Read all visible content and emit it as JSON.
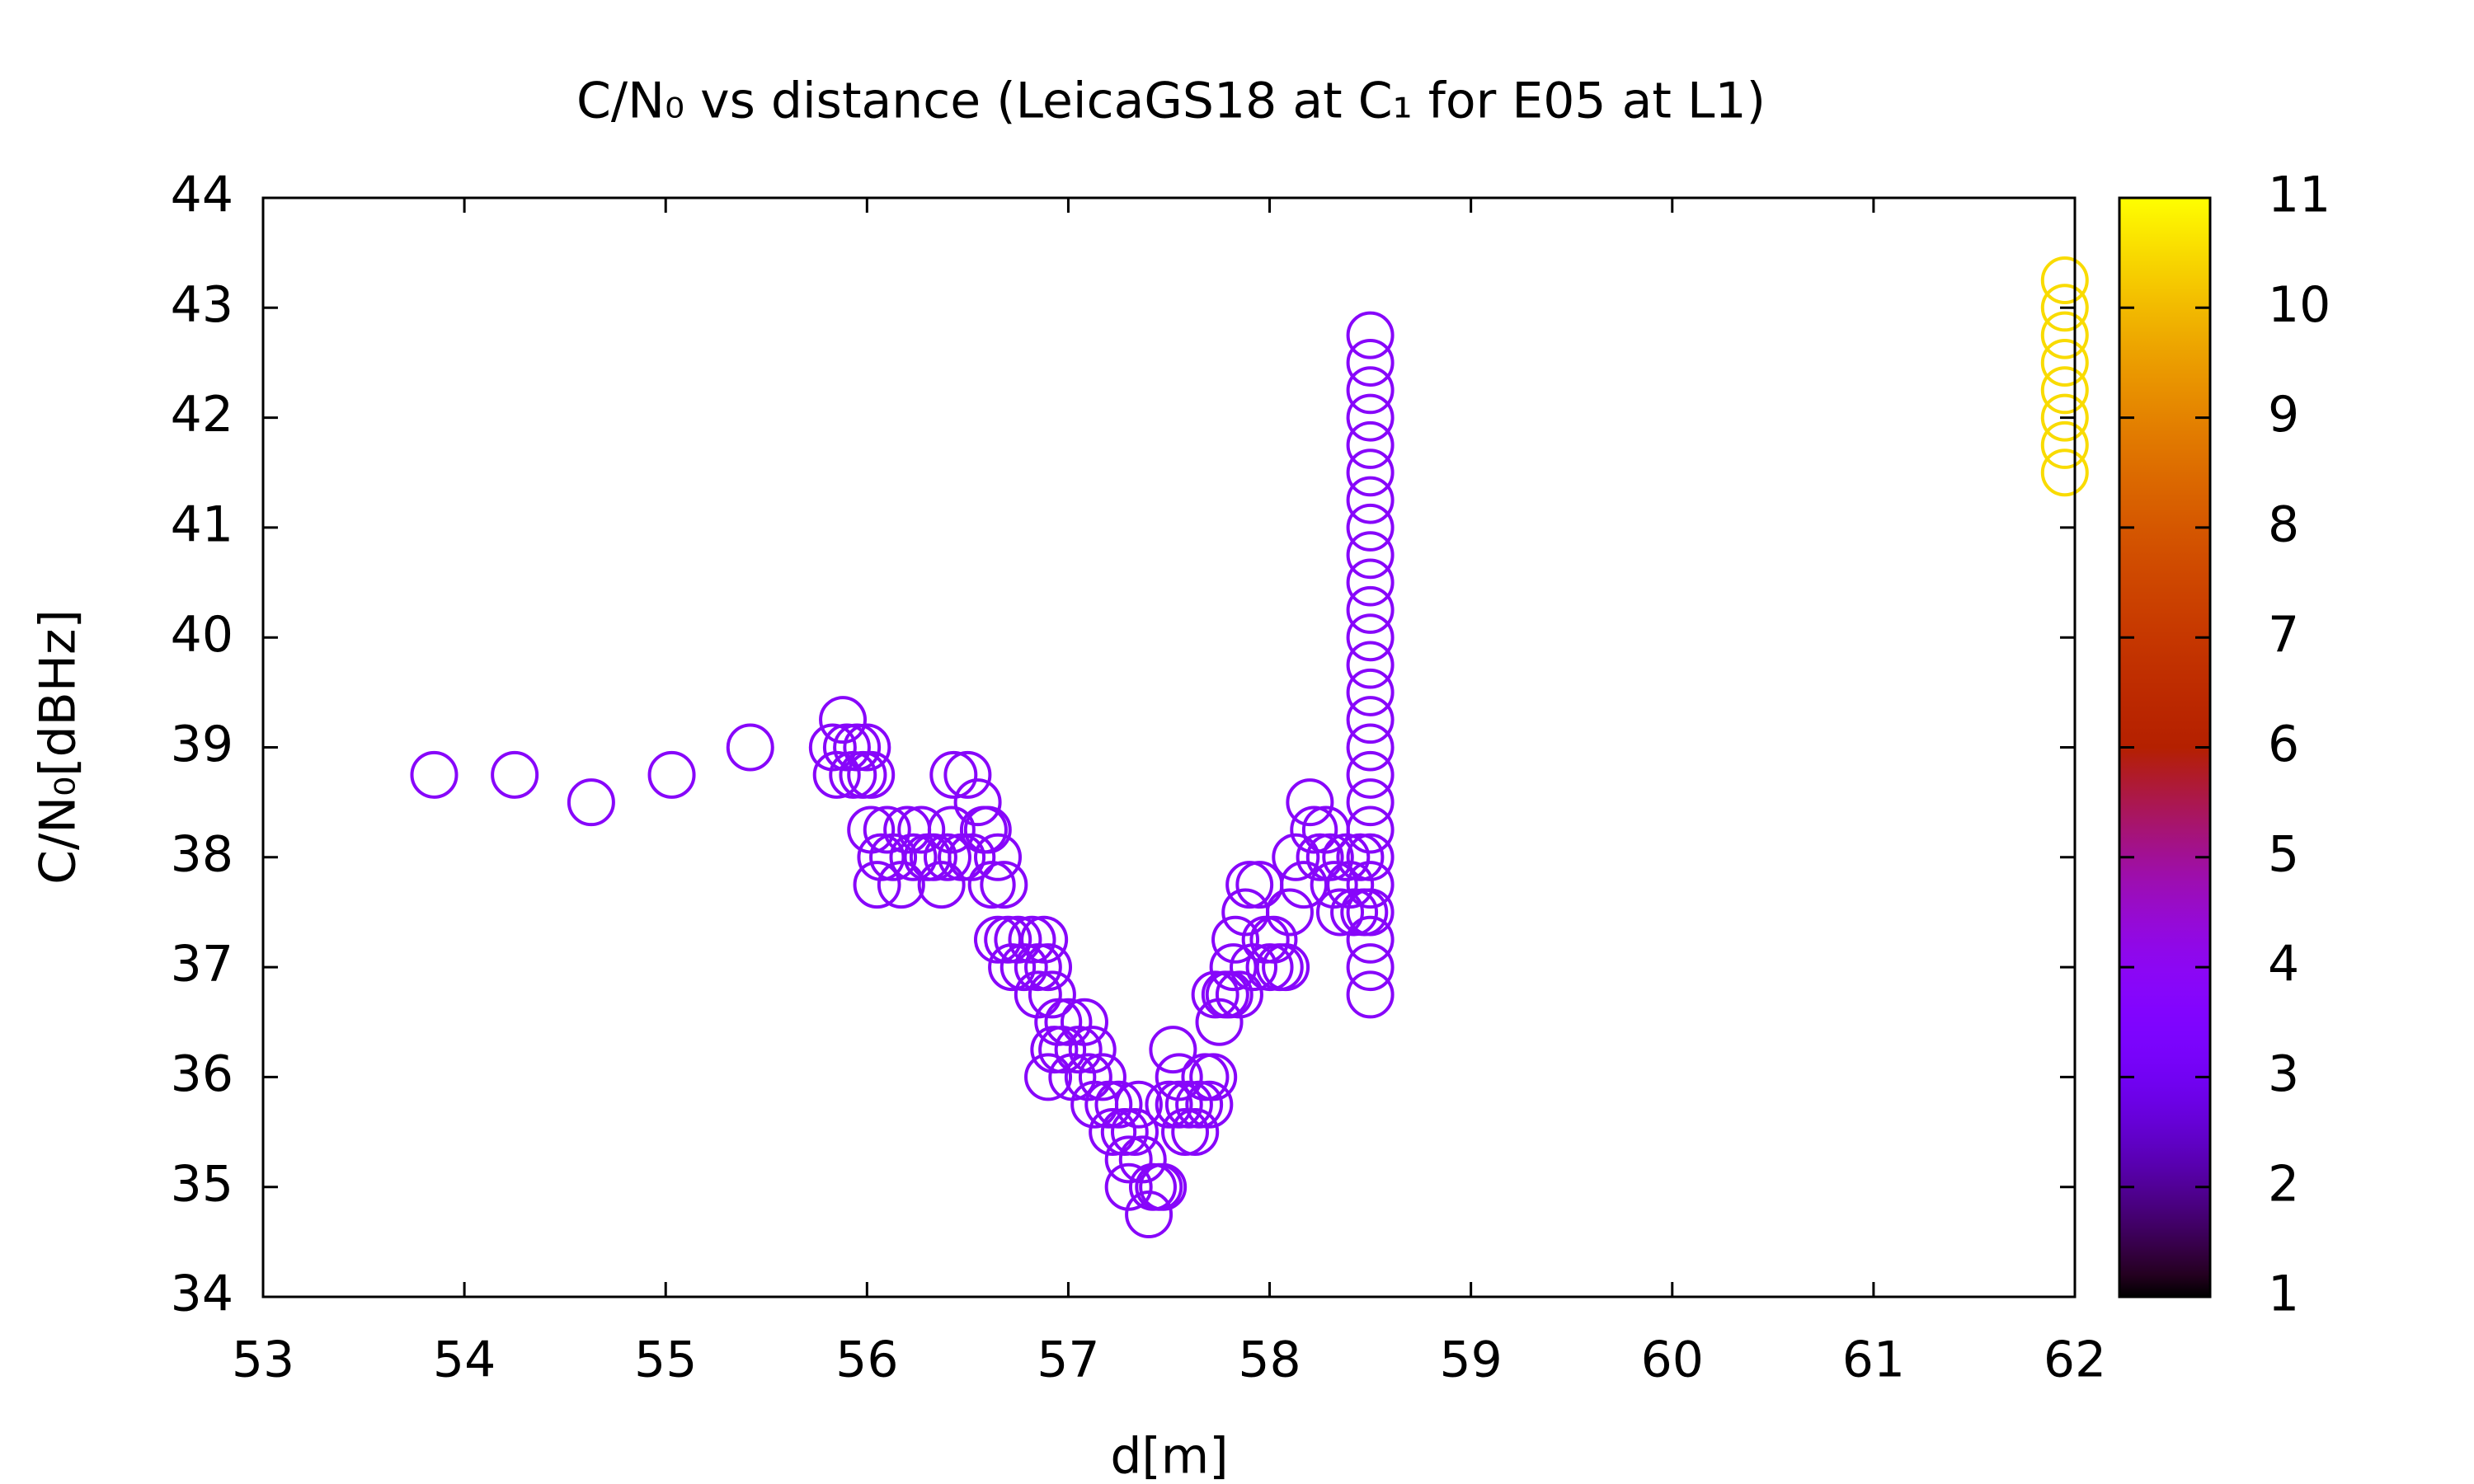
{
  "chart_data": {
    "type": "scatter",
    "title": "C/N₀ vs distance (LeicaGS18 at C₁ for E05 at L1)",
    "x_label": "d[m]",
    "y_label": "C/N₀[dBHz]",
    "xlim": [
      53,
      62
    ],
    "xticks": [
      53,
      54,
      55,
      56,
      57,
      58,
      59,
      60,
      61,
      62
    ],
    "ylim": [
      34,
      44
    ],
    "yticks": [
      34,
      35,
      36,
      37,
      38,
      39,
      40,
      41,
      42,
      43,
      44
    ],
    "clim": [
      1,
      11
    ],
    "cticks": [
      1,
      2,
      3,
      4,
      5,
      6,
      7,
      8,
      9,
      10,
      11
    ],
    "colormap": "gnuplot",
    "series": [
      {
        "z": 3.8,
        "x": [
          53.85,
          54.25,
          54.63,
          55.03,
          55.42,
          55.83,
          55.85,
          55.88,
          55.9,
          55.93,
          55.95,
          55.98,
          56.0,
          56.02,
          56.02,
          56.05,
          56.07,
          56.1,
          56.13,
          56.17,
          56.2,
          56.23,
          56.27,
          56.3,
          56.33,
          56.37,
          56.4,
          56.42,
          56.43,
          56.47,
          56.5,
          56.52,
          56.55,
          56.58,
          56.6,
          56.62,
          56.65,
          56.68,
          56.65,
          56.7,
          56.72,
          56.75,
          56.78,
          56.82,
          56.85,
          56.88,
          56.9,
          56.92,
          56.85,
          56.95,
          56.9,
          56.93,
          56.97,
          57.0,
          57.02,
          57.05,
          57.08,
          57.1,
          57.12,
          57.13,
          57.17,
          57.2,
          57.22,
          57.25,
          57.28,
          57.3,
          57.3,
          57.33,
          57.35,
          57.37,
          57.4,
          57.42,
          57.45,
          57.47,
          57.5,
          57.52,
          57.55,
          57.55,
          57.58,
          57.6,
          57.63,
          57.65,
          57.68,
          57.7,
          57.72,
          57.73,
          57.75,
          57.78,
          57.8,
          57.82,
          57.83,
          57.85,
          57.88,
          57.9,
          57.92,
          57.95,
          57.98,
          58.0,
          58.02,
          58.05,
          58.08,
          58.1,
          58.13,
          58.17,
          58.2,
          58.22,
          58.25,
          58.28,
          58.3,
          58.32,
          58.35,
          58.38,
          58.4,
          58.42,
          58.45,
          58.47,
          58.5,
          58.5,
          58.5,
          58.5,
          58.5,
          58.5,
          58.5,
          58.5,
          58.5,
          58.5,
          58.5,
          58.5,
          58.5,
          58.5,
          58.5,
          58.5,
          58.5,
          58.5,
          58.5,
          58.5,
          58.5,
          58.5,
          58.5,
          58.5,
          58.5
        ],
        "y": [
          38.75,
          38.75,
          38.5,
          38.75,
          39,
          39,
          38.75,
          39.25,
          39,
          38.75,
          39,
          38.75,
          39,
          38.75,
          38.25,
          37.75,
          38,
          38.25,
          38,
          37.75,
          38.25,
          38,
          38.25,
          38,
          38,
          37.75,
          38,
          38.25,
          38.75,
          38,
          38.75,
          38,
          38.5,
          38.25,
          38.25,
          37.75,
          38,
          37.75,
          37.25,
          37.25,
          37,
          37.25,
          37,
          37.25,
          37,
          37.25,
          37,
          36.75,
          36.75,
          36.5,
          36,
          36.25,
          36.25,
          36.5,
          36,
          36.25,
          36.5,
          36,
          36.25,
          35.75,
          36,
          35.75,
          35.5,
          35.75,
          35.5,
          35.25,
          35,
          35.5,
          35.75,
          35.25,
          34.75,
          35,
          35,
          35,
          35.75,
          36.25,
          36,
          35.75,
          35.5,
          35.75,
          35.5,
          35.75,
          36,
          35.75,
          36,
          36.75,
          36.5,
          36.75,
          36.75,
          37,
          37.25,
          36.75,
          37.5,
          37.75,
          37,
          37.75,
          37.25,
          37,
          37.25,
          37,
          37,
          37.5,
          38,
          37.75,
          38.5,
          38.25,
          38,
          38.25,
          38,
          37.75,
          37.5,
          38,
          37.75,
          37.5,
          38,
          37.5,
          36.75,
          37,
          37.25,
          37.5,
          37.75,
          38,
          38.25,
          38.5,
          38.75,
          39,
          39.25,
          39.5,
          39.75,
          40,
          40.25,
          40.5,
          40.75,
          41,
          41.25,
          41.5,
          41.75,
          42,
          42.25,
          42.5,
          42.75
        ]
      },
      {
        "z": 10.5,
        "x": [
          61.95,
          61.95,
          61.95,
          61.95,
          61.95,
          61.95,
          61.95,
          61.95
        ],
        "y": [
          41.5,
          41.75,
          42,
          42.25,
          42.5,
          42.75,
          43,
          43.25
        ]
      }
    ]
  }
}
